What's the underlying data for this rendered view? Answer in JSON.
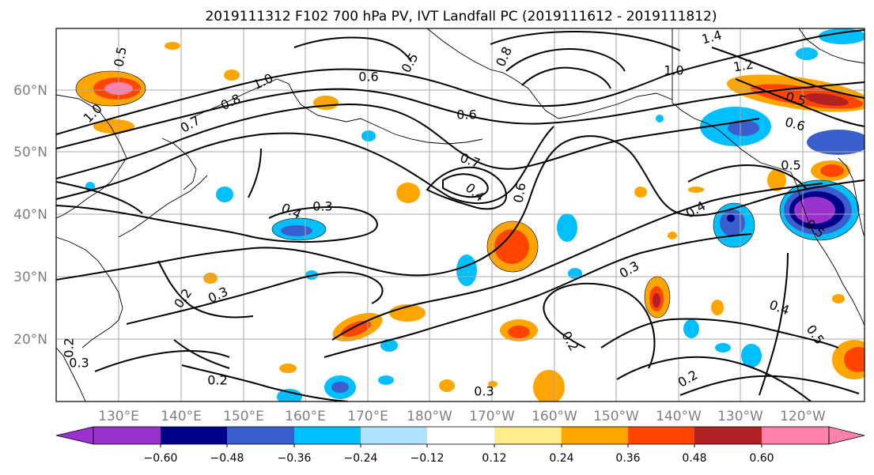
{
  "title": "2019111312 F102 700 hPa PV, IVT Landfall PC (2019111612 - 2019111812)",
  "map": {
    "lon_labels": [
      "130°E",
      "140°E",
      "150°E",
      "160°E",
      "170°E",
      "180°W",
      "170°W",
      "160°W",
      "150°W",
      "140°W",
      "130°W",
      "120°W"
    ],
    "lat_labels": [
      "60°N",
      "50°N",
      "40°N",
      "30°N",
      "20°N"
    ],
    "gridlines": true
  },
  "colorbar": {
    "ticks": [
      "−0.60",
      "−0.48",
      "−0.36",
      "−0.24",
      "−0.12",
      "0.12",
      "0.24",
      "0.36",
      "0.48",
      "0.60"
    ],
    "colors": [
      "#9932cc",
      "#00008b",
      "#3a5fcd",
      "#00bfff",
      "#b0e2ff",
      "#ffffff",
      "#ffec8b",
      "#ffa500",
      "#ff4500",
      "#b22222",
      "#ff82ab"
    ],
    "extend": "both"
  },
  "contour_labels": [
    "1.0",
    "0.8",
    "0.7",
    "1.0",
    "0.6",
    "0.5",
    "0.8",
    "1.4",
    "1.2",
    "1.0",
    "0.5",
    "0.6",
    "0.5",
    "0.6",
    "0.7",
    "0.4",
    "0.6",
    "0.4",
    "0.3",
    "0.4",
    "0.5",
    "0.3",
    "0.2",
    "0.3",
    "0.4",
    "0.3",
    "0.5",
    "0.2",
    "0.2",
    "0.2",
    "0.2",
    "0.3",
    "0.5"
  ]
}
